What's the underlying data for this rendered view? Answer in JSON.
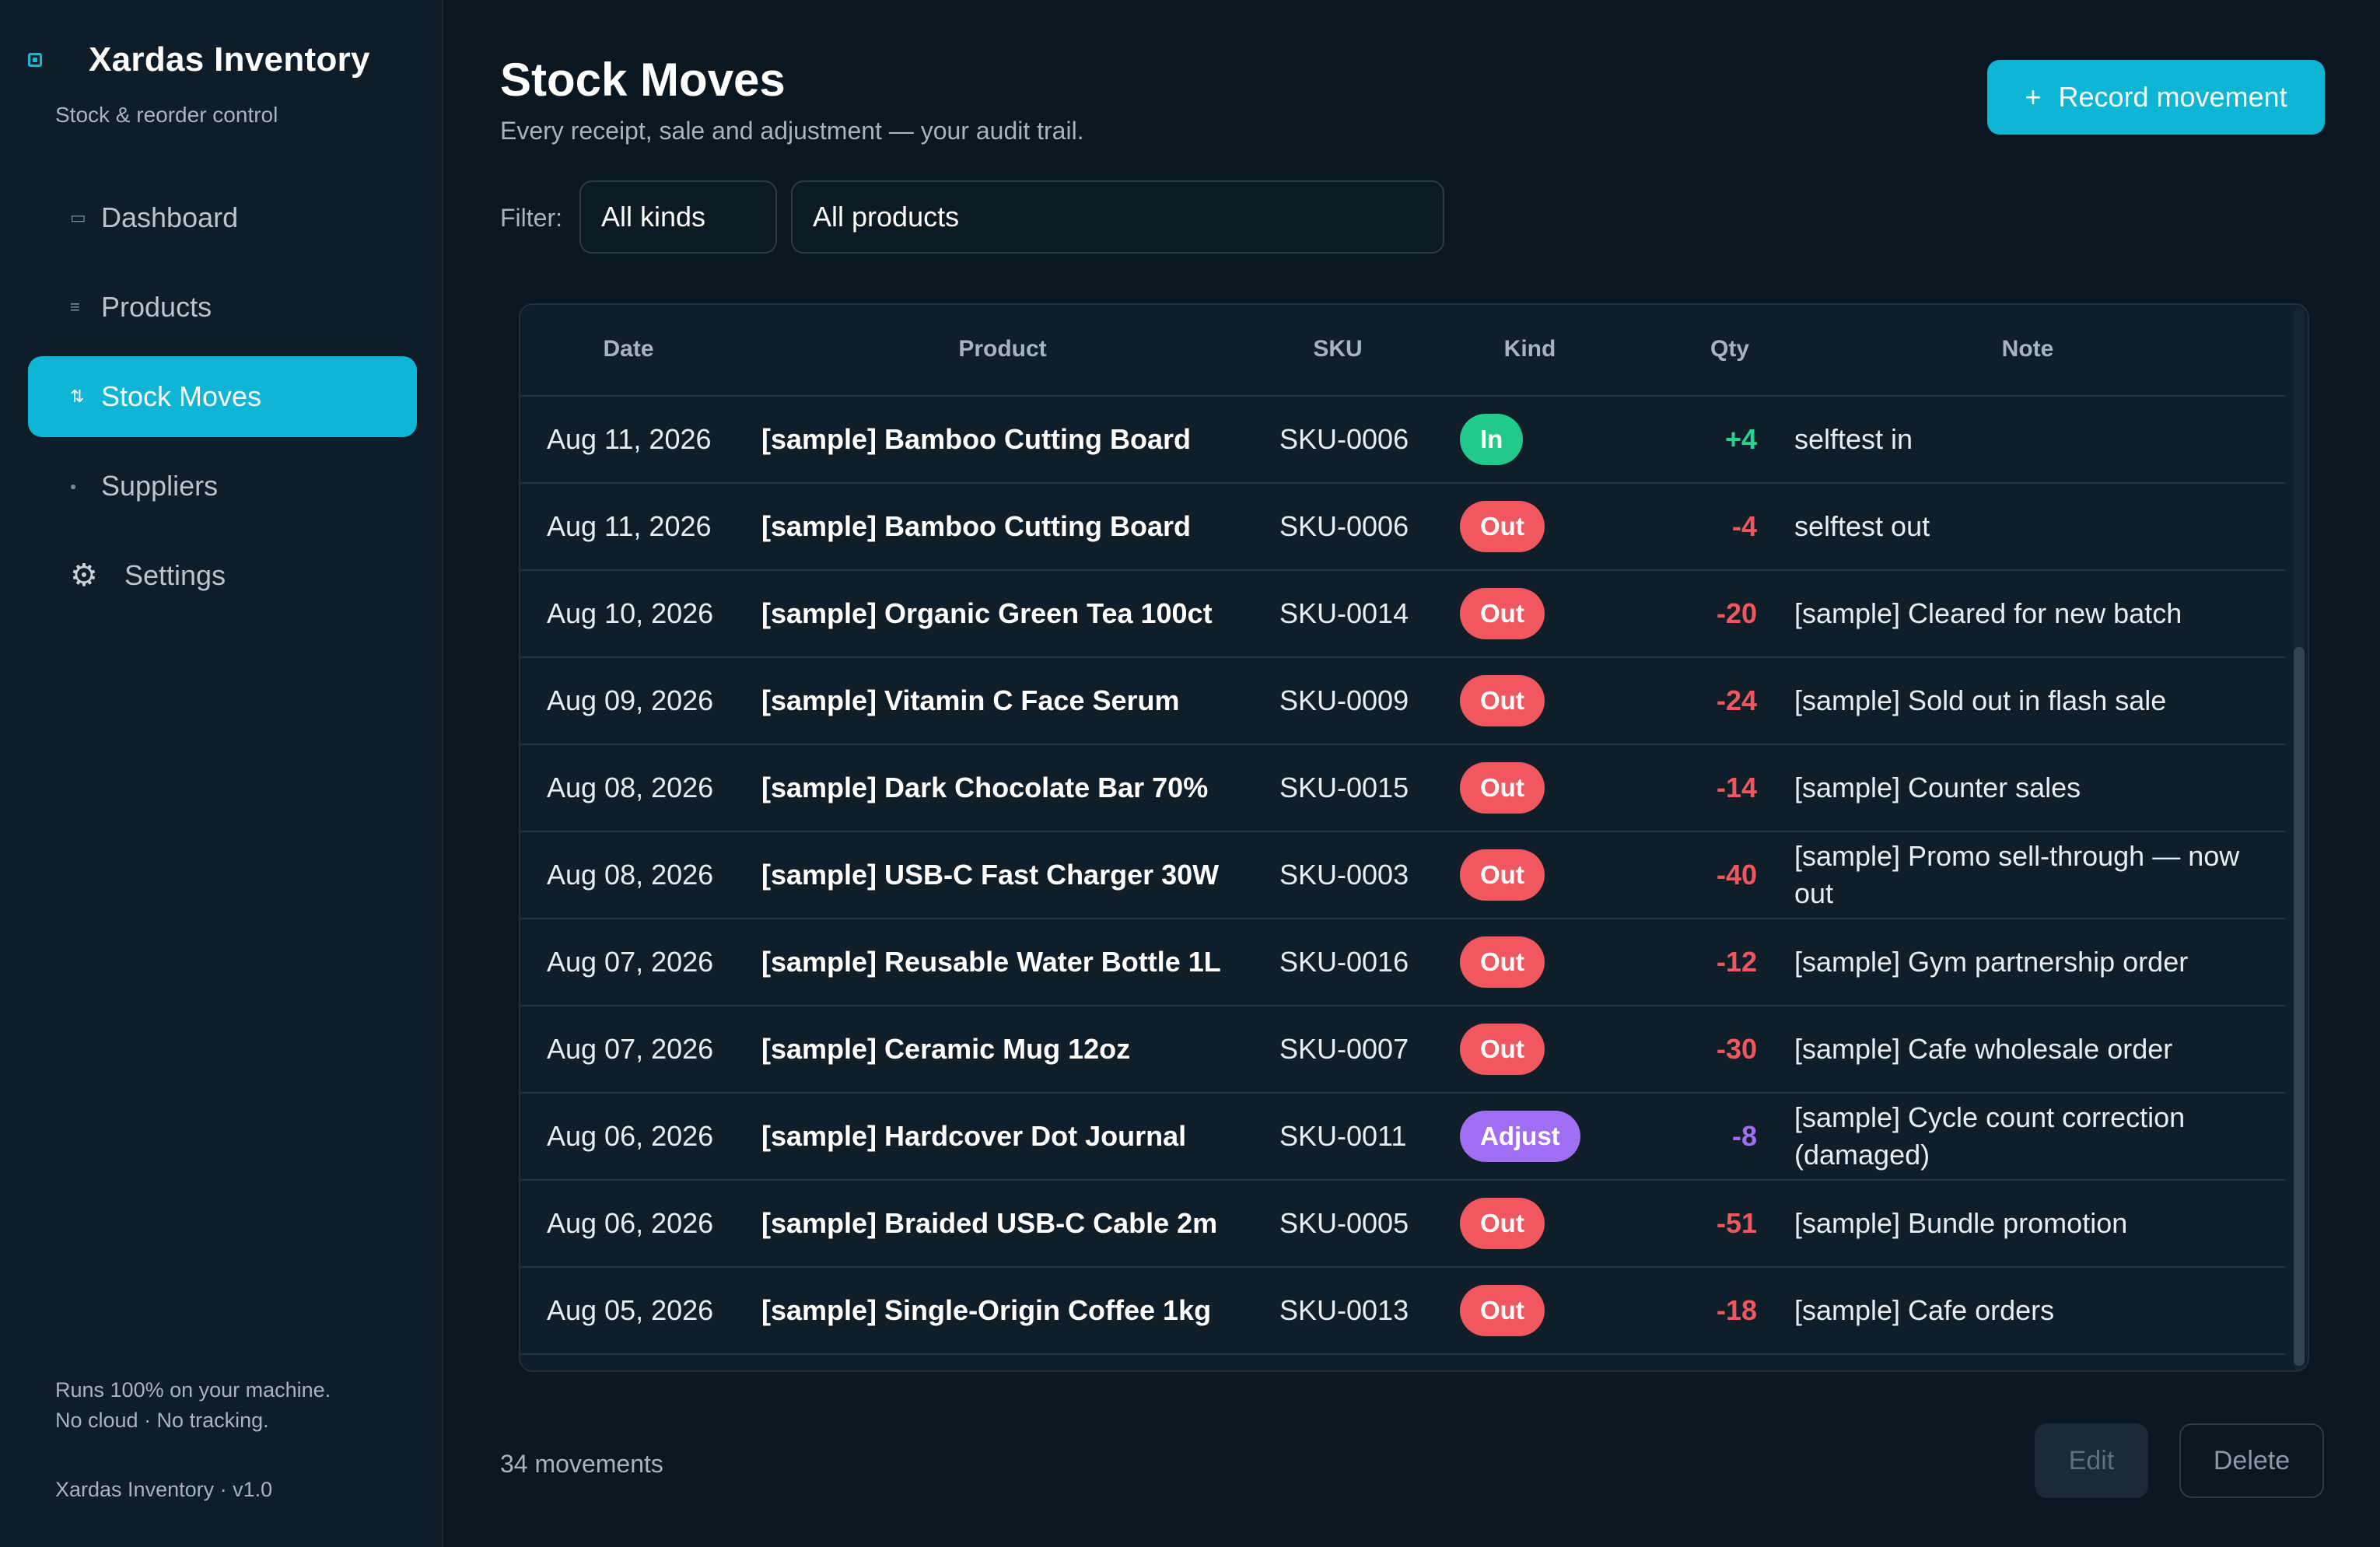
{
  "app": {
    "name": "Xardas Inventory",
    "tagline": "Stock & reorder control"
  },
  "sidebar": {
    "items": [
      {
        "label": "Dashboard",
        "icon": "dashboard-icon",
        "glyph": "▭"
      },
      {
        "label": "Products",
        "icon": "list-icon",
        "glyph": "≡"
      },
      {
        "label": "Stock Moves",
        "icon": "swap-icon",
        "glyph": "⇅",
        "active": true
      },
      {
        "label": "Suppliers",
        "icon": "supplier-icon",
        "glyph": "●"
      },
      {
        "label": "Settings",
        "icon": "gear-icon",
        "glyph": "⚙"
      }
    ],
    "footer_line1": "Runs 100% on your machine.",
    "footer_line2": "No cloud · No tracking.",
    "version": "Xardas Inventory · v1.0"
  },
  "page": {
    "title": "Stock Moves",
    "subtitle": "Every receipt, sale and adjustment — your audit trail.",
    "record_button": "Record movement",
    "record_button_icon": "+"
  },
  "filter": {
    "label": "Filter:",
    "kind_value": "All kinds",
    "product_value": "All products"
  },
  "table": {
    "columns": [
      "Date",
      "Product",
      "SKU",
      "Kind",
      "Qty",
      "Note"
    ],
    "rows": [
      {
        "date": "Aug 11, 2026",
        "product": "[sample] Bamboo Cutting Board",
        "sku": "SKU-0006",
        "kind": "In",
        "qty": "+4",
        "note": "selftest in"
      },
      {
        "date": "Aug 11, 2026",
        "product": "[sample] Bamboo Cutting Board",
        "sku": "SKU-0006",
        "kind": "Out",
        "qty": "-4",
        "note": "selftest out"
      },
      {
        "date": "Aug 10, 2026",
        "product": "[sample] Organic Green Tea 100ct",
        "sku": "SKU-0014",
        "kind": "Out",
        "qty": "-20",
        "note": "[sample] Cleared for new batch"
      },
      {
        "date": "Aug 09, 2026",
        "product": "[sample] Vitamin C Face Serum",
        "sku": "SKU-0009",
        "kind": "Out",
        "qty": "-24",
        "note": "[sample] Sold out in flash sale"
      },
      {
        "date": "Aug 08, 2026",
        "product": "[sample] Dark Chocolate Bar 70%",
        "sku": "SKU-0015",
        "kind": "Out",
        "qty": "-14",
        "note": "[sample] Counter sales"
      },
      {
        "date": "Aug 08, 2026",
        "product": "[sample] USB-C Fast Charger 30W",
        "sku": "SKU-0003",
        "kind": "Out",
        "qty": "-40",
        "note": "[sample] Promo sell-through — now out"
      },
      {
        "date": "Aug 07, 2026",
        "product": "[sample] Reusable Water Bottle 1L",
        "sku": "SKU-0016",
        "kind": "Out",
        "qty": "-12",
        "note": "[sample] Gym partnership order"
      },
      {
        "date": "Aug 07, 2026",
        "product": "[sample] Ceramic Mug 12oz",
        "sku": "SKU-0007",
        "kind": "Out",
        "qty": "-30",
        "note": "[sample] Cafe wholesale order"
      },
      {
        "date": "Aug 06, 2026",
        "product": "[sample] Hardcover Dot Journal",
        "sku": "SKU-0011",
        "kind": "Adjust",
        "qty": "-8",
        "note": "[sample] Cycle count correction (damaged)"
      },
      {
        "date": "Aug 06, 2026",
        "product": "[sample] Braided USB-C Cable 2m",
        "sku": "SKU-0005",
        "kind": "Out",
        "qty": "-51",
        "note": "[sample] Bundle promotion"
      },
      {
        "date": "Aug 05, 2026",
        "product": "[sample] Single-Origin Coffee 1kg",
        "sku": "SKU-0013",
        "kind": "Out",
        "qty": "-18",
        "note": "[sample] Cafe orders"
      }
    ]
  },
  "footer": {
    "count": "34 movements",
    "edit_button": "Edit",
    "delete_button": "Delete"
  },
  "colors": {
    "accent": "#0fb5d4",
    "in": "#22c98a",
    "out": "#f0575f",
    "adjust": "#a06ef2",
    "background": "#0a1620"
  }
}
